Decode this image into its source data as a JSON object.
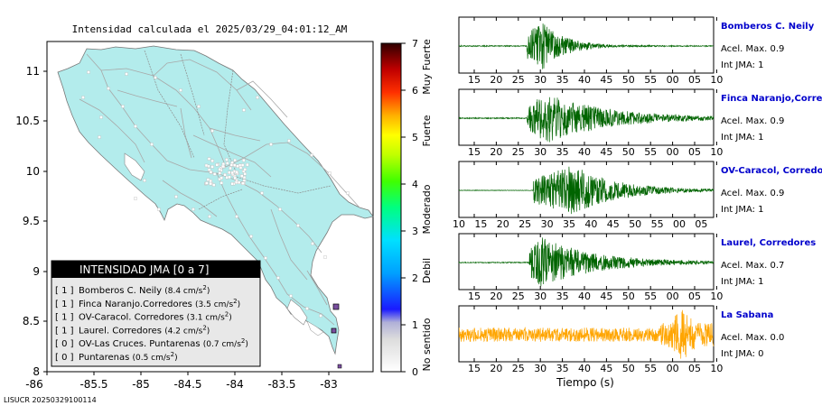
{
  "map": {
    "title": "Intensidad calculada el 2025/03/29_04:01:12_AM",
    "x_ticks": [
      "-86",
      "-85.5",
      "-85",
      "-84.5",
      "-84",
      "-83.5",
      "-83"
    ],
    "y_ticks": [
      "11",
      "10.5",
      "10",
      "9.5",
      "9",
      "8.5",
      "8"
    ],
    "footer_id": "LISUCR 20250329100114",
    "land_color": "#b3ecec",
    "station_color": "#7a4fa0"
  },
  "colorbar": {
    "ticks": [
      "7",
      "6",
      "5",
      "4",
      "3",
      "2",
      "1",
      "0"
    ],
    "labels": [
      "Muy Fuerte",
      "Fuerte",
      "Moderado",
      "Debil",
      "No sentido"
    ]
  },
  "legend": {
    "title": "INTENSIDAD JMA [0 a 7]",
    "items": [
      {
        "jma": "[ 1 ]",
        "name": "Bomberos C. Neily",
        "val": "(8.4 cm/s",
        "sup": "2",
        "end": ")"
      },
      {
        "jma": "[ 1 ]",
        "name": "Finca Naranjo.Corredores",
        "val": "(3.5 cm/s",
        "sup": "2",
        "end": ")"
      },
      {
        "jma": "[ 1 ]",
        "name": "OV-Caracol. Corredores",
        "val": "(3.1 cm/s",
        "sup": "2",
        "end": ")"
      },
      {
        "jma": "[ 1 ]",
        "name": "Laurel. Corredores",
        "val": "(4.2 cm/s",
        "sup": "2",
        "end": ")"
      },
      {
        "jma": "[ 0 ]",
        "name": "OV-Las Cruces. Puntarenas",
        "val": "(0.7 cm/s",
        "sup": "2",
        "end": ")"
      },
      {
        "jma": "[ 0 ]",
        "name": "Puntarenas",
        "val": "(0.5 cm/s",
        "sup": "2",
        "end": ")"
      }
    ]
  },
  "chart_data": {
    "type": "line",
    "xlabel": "Tiempo (s)",
    "series": [
      {
        "name": "Bomberos C. Neily",
        "accel_label": "Acel. Max. 0.9",
        "jma_label": "Int JMA: 1",
        "color": "#006400",
        "tick_labels": [
          "15",
          "20",
          "25",
          "30",
          "35",
          "40",
          "45",
          "50",
          "55",
          "00",
          "05",
          "10"
        ],
        "start": 27.5,
        "peak": 31,
        "decay": 5,
        "noise": 0.02
      },
      {
        "name": "Finca Naranjo,Corredores",
        "accel_label": "Acel. Max. 0.9",
        "jma_label": "Int JMA: 1",
        "color": "#006400",
        "tick_labels": [
          "15",
          "20",
          "25",
          "30",
          "35",
          "40",
          "45",
          "50",
          "55",
          "00",
          "05",
          "10"
        ],
        "start": 27.5,
        "peak": 32,
        "decay": 14,
        "noise": 0.02
      },
      {
        "name": "OV-Caracol, Corredores",
        "accel_label": "Acel. Max. 0.9",
        "jma_label": "Int JMA: 1",
        "color": "#006400",
        "tick_labels": [
          "10",
          "15",
          "20",
          "25",
          "30",
          "35",
          "40",
          "45",
          "50",
          "55",
          "00",
          "05"
        ],
        "start": 29,
        "peak": 38,
        "decay": 10,
        "noise": 0.01
      },
      {
        "name": "Laurel, Corredores",
        "accel_label": "Acel. Max. 0.7",
        "jma_label": "Int JMA: 1",
        "color": "#006400",
        "tick_labels": [
          "15",
          "20",
          "25",
          "30",
          "35",
          "40",
          "45",
          "50",
          "55",
          "00",
          "05",
          "10"
        ],
        "start": 28,
        "peak": 31,
        "decay": 12,
        "noise": 0.02
      },
      {
        "name": "La Sabana",
        "accel_label": "Acel. Max. 0.0",
        "jma_label": "Int JMA: 0",
        "color": "#ffa500",
        "tick_labels": [
          "15",
          "20",
          "25",
          "30",
          "35",
          "40",
          "45",
          "50",
          "55",
          "00",
          "05",
          "10"
        ],
        "start": 0,
        "peak": 63,
        "decay": 0,
        "noise": 0.28
      }
    ]
  }
}
